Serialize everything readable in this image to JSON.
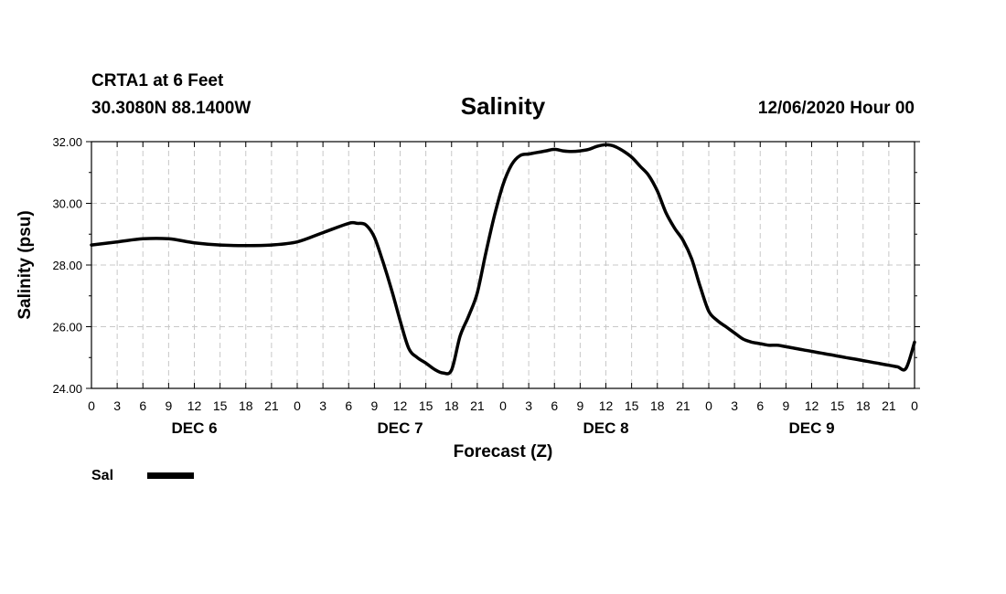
{
  "header": {
    "station": "CRTA1 at 6 Feet",
    "coords": "30.3080N 88.1400W",
    "date": "12/06/2020 Hour 00"
  },
  "chart_data": {
    "type": "line",
    "title": "Salinity",
    "xlabel": "Forecast (Z)",
    "ylabel": "Salinity (psu)",
    "xlim": [
      0,
      96
    ],
    "ylim": [
      24,
      32
    ],
    "y_ticks": [
      24,
      26,
      28,
      30,
      32
    ],
    "y_tick_labels": [
      "24.00",
      "26.00",
      "28.00",
      "30.00",
      "32.00"
    ],
    "x_ticks": [
      0,
      3,
      6,
      9,
      12,
      15,
      18,
      21,
      24,
      27,
      30,
      33,
      36,
      39,
      42,
      45,
      48,
      51,
      54,
      57,
      60,
      63,
      66,
      69,
      72,
      75,
      78,
      81,
      84,
      87,
      90,
      93,
      96
    ],
    "x_tick_labels": [
      "0",
      "3",
      "6",
      "9",
      "12",
      "15",
      "18",
      "21",
      "0",
      "3",
      "6",
      "9",
      "12",
      "15",
      "18",
      "21",
      "0",
      "3",
      "6",
      "9",
      "12",
      "15",
      "18",
      "21",
      "0",
      "3",
      "6",
      "9",
      "12",
      "15",
      "18",
      "21",
      "0"
    ],
    "day_labels": [
      {
        "label": "DEC 6",
        "x": 12
      },
      {
        "label": "DEC 7",
        "x": 36
      },
      {
        "label": "DEC 8",
        "x": 60
      },
      {
        "label": "DEC 9",
        "x": 84
      }
    ],
    "grid": true,
    "legend": "bottom-left",
    "series": [
      {
        "name": "Sal",
        "color": "#000000",
        "x": [
          0,
          3,
          6,
          9,
          12,
          15,
          18,
          21,
          24,
          27,
          30,
          31,
          32,
          33,
          34,
          35,
          36,
          37,
          38,
          39,
          40,
          41,
          42,
          43,
          44,
          45,
          46,
          47,
          48,
          49,
          50,
          51,
          52,
          53,
          54,
          55,
          56,
          57,
          58,
          59,
          60,
          61,
          62,
          63,
          64,
          65,
          66,
          67,
          68,
          69,
          70,
          71,
          72,
          73,
          74,
          75,
          76,
          77,
          78,
          79,
          80,
          81,
          82,
          83,
          84,
          85,
          86,
          87,
          88,
          89,
          90,
          91,
          92,
          93,
          94,
          95,
          96
        ],
        "y": [
          28.65,
          28.75,
          28.85,
          28.85,
          28.72,
          28.65,
          28.63,
          28.65,
          28.75,
          29.05,
          29.35,
          29.35,
          29.3,
          28.9,
          28.1,
          27.2,
          26.2,
          25.3,
          25.0,
          24.82,
          24.62,
          24.5,
          24.6,
          25.7,
          26.35,
          27.1,
          28.4,
          29.6,
          30.6,
          31.25,
          31.55,
          31.6,
          31.65,
          31.7,
          31.75,
          31.7,
          31.68,
          31.7,
          31.75,
          31.85,
          31.9,
          31.85,
          31.7,
          31.5,
          31.2,
          30.9,
          30.4,
          29.7,
          29.2,
          28.8,
          28.2,
          27.3,
          26.5,
          26.2,
          26.0,
          25.8,
          25.6,
          25.5,
          25.45,
          25.4,
          25.4,
          25.35,
          25.3,
          25.25,
          25.2,
          25.15,
          25.1,
          25.05,
          25.0,
          24.95,
          24.9,
          24.85,
          24.8,
          24.75,
          24.7,
          24.65,
          25.5
        ]
      }
    ]
  }
}
